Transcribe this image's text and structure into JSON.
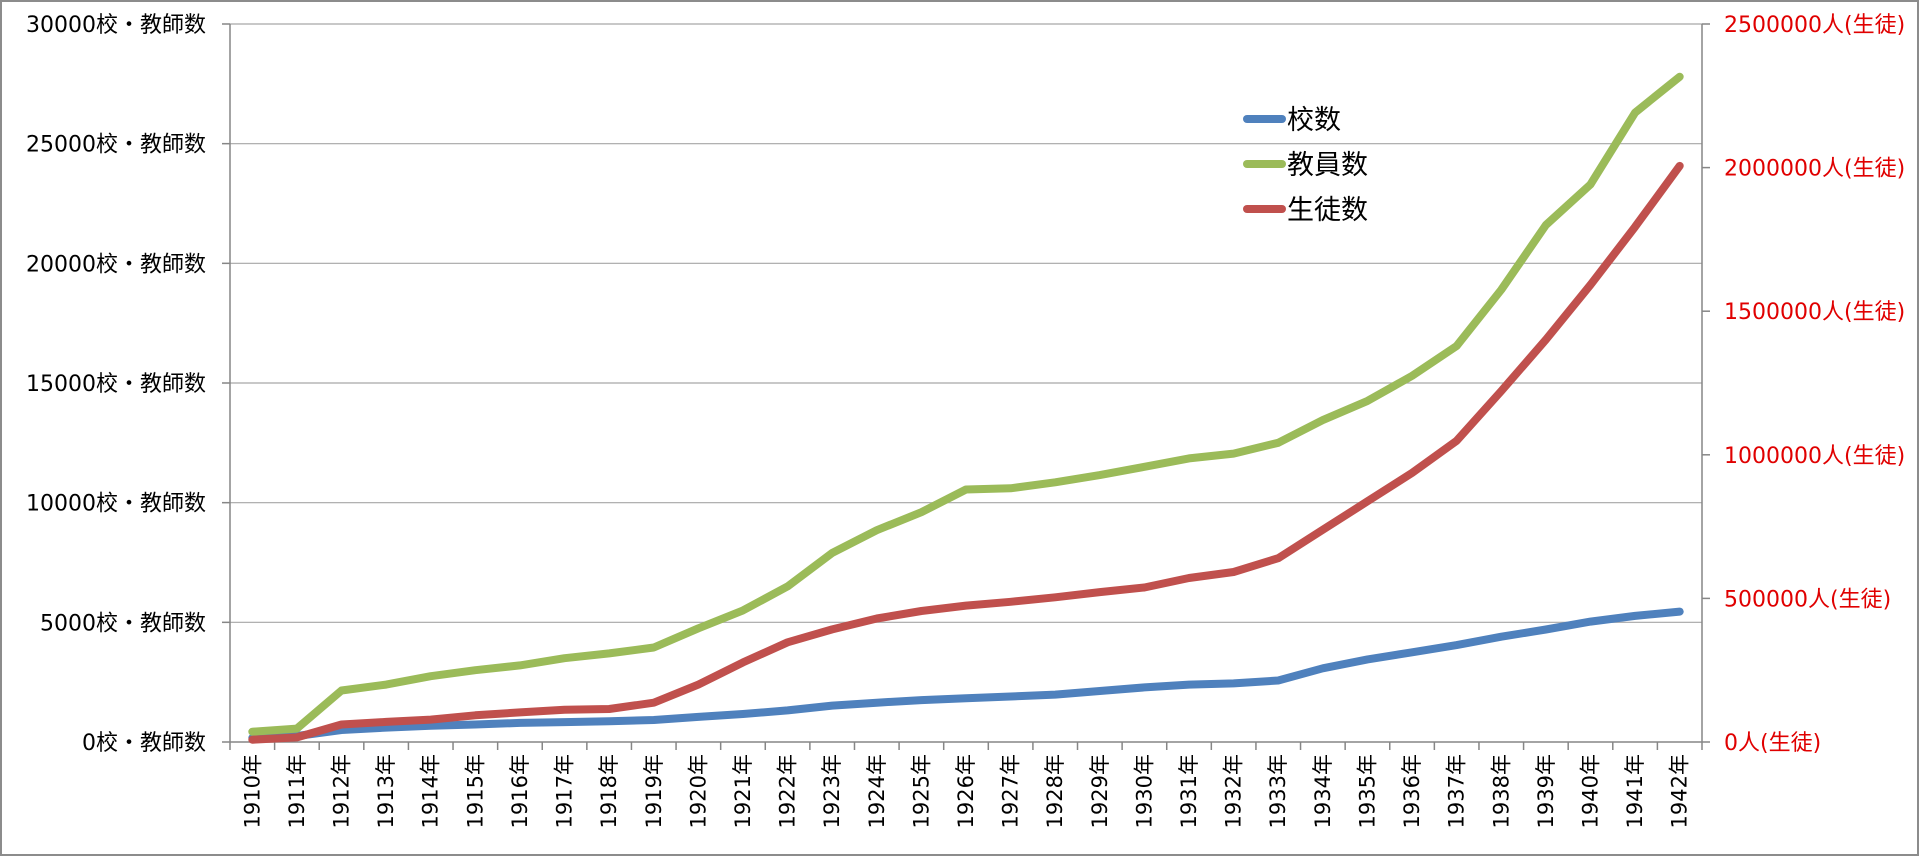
{
  "chart_data": {
    "type": "line",
    "title": "",
    "categories": [
      "1910年",
      "1911年",
      "1912年",
      "1913年",
      "1914年",
      "1915年",
      "1916年",
      "1917年",
      "1918年",
      "1919年",
      "1920年",
      "1921年",
      "1922年",
      "1923年",
      "1924年",
      "1925年",
      "1926年",
      "1927年",
      "1928年",
      "1929年",
      "1930年",
      "1931年",
      "1932年",
      "1933年",
      "1934年",
      "1935年",
      "1936年",
      "1937年",
      "1938年",
      "1939年",
      "1940年",
      "1941年",
      "1942年"
    ],
    "y_left": {
      "ylim": [
        0,
        30000
      ],
      "ticks": [
        0,
        5000,
        10000,
        15000,
        20000,
        25000,
        30000
      ],
      "tick_labels": [
        "0校・教師数",
        "5000校・教師数",
        "10000校・教師数",
        "15000校・教師数",
        "20000校・教師数",
        "25000校・教師数",
        "30000校・教師数"
      ]
    },
    "y_right": {
      "ylim": [
        0,
        2500000
      ],
      "ticks": [
        0,
        500000,
        1000000,
        1500000,
        2000000,
        2500000
      ],
      "tick_labels": [
        "0人(生徒)",
        "500000人(生徒)",
        "1000000人(生徒)",
        "1500000人(生徒)",
        "2000000人(生徒)",
        "2500000人(生徒)"
      ],
      "color": "#e00000"
    },
    "grid": true,
    "legend_position": "top-right",
    "series": [
      {
        "name": "校数",
        "axis": "left",
        "color": "#4f81bd",
        "values": [
          170,
          250,
          500,
          600,
          680,
          730,
          800,
          830,
          870,
          920,
          1050,
          1170,
          1320,
          1520,
          1640,
          1750,
          1830,
          1900,
          1980,
          2130,
          2280,
          2400,
          2450,
          2570,
          3080,
          3450,
          3750,
          4050,
          4400,
          4700,
          5030,
          5270,
          5450
        ]
      },
      {
        "name": "教員数",
        "axis": "left",
        "color": "#9bbb59",
        "values": [
          430,
          560,
          2150,
          2400,
          2750,
          3000,
          3200,
          3500,
          3700,
          3950,
          4750,
          5500,
          6500,
          7900,
          8850,
          9600,
          10550,
          10600,
          10850,
          11150,
          11500,
          11850,
          12050,
          12500,
          13450,
          14250,
          15300,
          16550,
          18900,
          21600,
          23300,
          26300,
          27800
        ]
      },
      {
        "name": "生徒数",
        "axis": "right",
        "color": "#c0504d",
        "values": [
          8000,
          16000,
          61000,
          70000,
          78000,
          93000,
          103000,
          112000,
          115000,
          137000,
          200000,
          277000,
          347000,
          392000,
          430000,
          456000,
          475000,
          488000,
          504000,
          522000,
          538000,
          571000,
          592000,
          640000,
          739000,
          838000,
          937000,
          1049000,
          1222000,
          1401000,
          1592000,
          1794000,
          2006000
        ]
      }
    ]
  }
}
